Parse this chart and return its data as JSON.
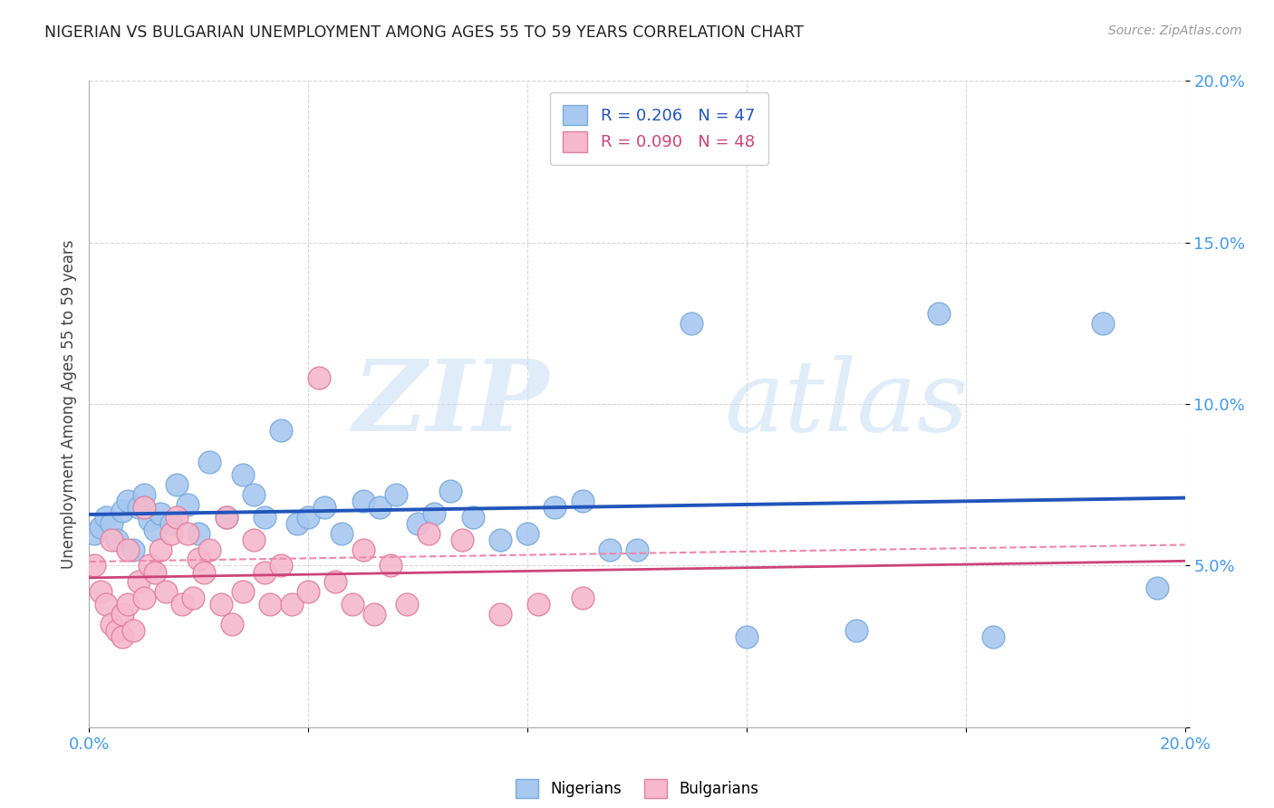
{
  "title": "NIGERIAN VS BULGARIAN UNEMPLOYMENT AMONG AGES 55 TO 59 YEARS CORRELATION CHART",
  "source": "Source: ZipAtlas.com",
  "ylabel": "Unemployment Among Ages 55 to 59 years",
  "xlim": [
    0.0,
    0.2
  ],
  "ylim": [
    0.0,
    0.2
  ],
  "background_color": "#ffffff",
  "grid_color": "#cccccc",
  "watermark_zip": "ZIP",
  "watermark_atlas": "atlas",
  "nigerian_color": "#a8c8f0",
  "nigerian_edge": "#7aabdb",
  "bulgarian_color": "#f5b8cc",
  "bulgarian_edge": "#e07fa0",
  "trend_nigerian_color": "#2255bb",
  "trend_bulgarian_solid_color": "#cc4477",
  "trend_bulgarian_dash_color": "#ee88aa",
  "R_nigerian": 0.206,
  "N_nigerian": 47,
  "R_bulgarian": 0.09,
  "N_bulgarian": 48,
  "nigerian_x": [
    0.001,
    0.002,
    0.003,
    0.004,
    0.005,
    0.006,
    0.007,
    0.008,
    0.009,
    0.01,
    0.011,
    0.012,
    0.013,
    0.015,
    0.016,
    0.018,
    0.02,
    0.022,
    0.025,
    0.028,
    0.03,
    0.032,
    0.035,
    0.038,
    0.04,
    0.043,
    0.046,
    0.05,
    0.053,
    0.056,
    0.06,
    0.063,
    0.066,
    0.07,
    0.075,
    0.08,
    0.085,
    0.09,
    0.095,
    0.1,
    0.11,
    0.12,
    0.14,
    0.155,
    0.165,
    0.185,
    0.195
  ],
  "nigerian_y": [
    0.06,
    0.062,
    0.065,
    0.063,
    0.058,
    0.067,
    0.07,
    0.055,
    0.068,
    0.072,
    0.064,
    0.061,
    0.066,
    0.063,
    0.075,
    0.069,
    0.06,
    0.082,
    0.065,
    0.078,
    0.072,
    0.065,
    0.092,
    0.063,
    0.065,
    0.068,
    0.06,
    0.07,
    0.068,
    0.072,
    0.063,
    0.066,
    0.073,
    0.065,
    0.058,
    0.06,
    0.068,
    0.07,
    0.055,
    0.055,
    0.125,
    0.028,
    0.03,
    0.128,
    0.028,
    0.125,
    0.043
  ],
  "bulgarian_x": [
    0.001,
    0.002,
    0.003,
    0.004,
    0.004,
    0.005,
    0.006,
    0.006,
    0.007,
    0.007,
    0.008,
    0.009,
    0.01,
    0.01,
    0.011,
    0.012,
    0.013,
    0.014,
    0.015,
    0.016,
    0.017,
    0.018,
    0.019,
    0.02,
    0.021,
    0.022,
    0.024,
    0.025,
    0.026,
    0.028,
    0.03,
    0.032,
    0.033,
    0.035,
    0.037,
    0.04,
    0.042,
    0.045,
    0.048,
    0.05,
    0.052,
    0.055,
    0.058,
    0.062,
    0.068,
    0.075,
    0.082,
    0.09
  ],
  "bulgarian_y": [
    0.05,
    0.042,
    0.038,
    0.032,
    0.058,
    0.03,
    0.035,
    0.028,
    0.038,
    0.055,
    0.03,
    0.045,
    0.04,
    0.068,
    0.05,
    0.048,
    0.055,
    0.042,
    0.06,
    0.065,
    0.038,
    0.06,
    0.04,
    0.052,
    0.048,
    0.055,
    0.038,
    0.065,
    0.032,
    0.042,
    0.058,
    0.048,
    0.038,
    0.05,
    0.038,
    0.042,
    0.108,
    0.045,
    0.038,
    0.055,
    0.035,
    0.05,
    0.038,
    0.06,
    0.058,
    0.035,
    0.038,
    0.04
  ]
}
